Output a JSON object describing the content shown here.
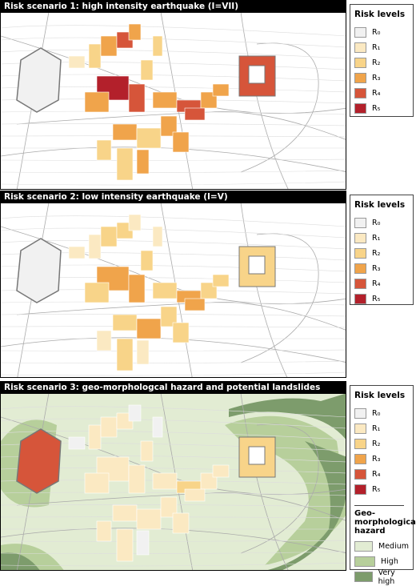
{
  "panels": [
    {
      "title": "Risk scenario 1: high intensity earthquake (I=VII)",
      "legend_title": "Risk levels"
    },
    {
      "title": "Risk scenario 2: low intensity earthquake (I=V)",
      "legend_title": "Risk levels"
    },
    {
      "title": "Risk scenario 3: geo-morphologcal hazard and potential landslides",
      "legend_title": "Risk levels",
      "hazard": {
        "title": "Geo-morphological hazard",
        "levels": [
          {
            "label": "Medium",
            "color": "#e2ecd3"
          },
          {
            "label": "High",
            "color": "#b7cf9b"
          },
          {
            "label": "Very high",
            "color": "#7d9c6c"
          }
        ]
      }
    }
  ],
  "risk_levels": [
    {
      "label": "R₀",
      "color": "#f1f1f1"
    },
    {
      "label": "R₁",
      "color": "#fbe9c2"
    },
    {
      "label": "R₂",
      "color": "#f8d489"
    },
    {
      "label": "R₃",
      "color": "#f0a44b"
    },
    {
      "label": "R₄",
      "color": "#d6553a"
    },
    {
      "label": "R₅",
      "color": "#b3202b"
    }
  ]
}
